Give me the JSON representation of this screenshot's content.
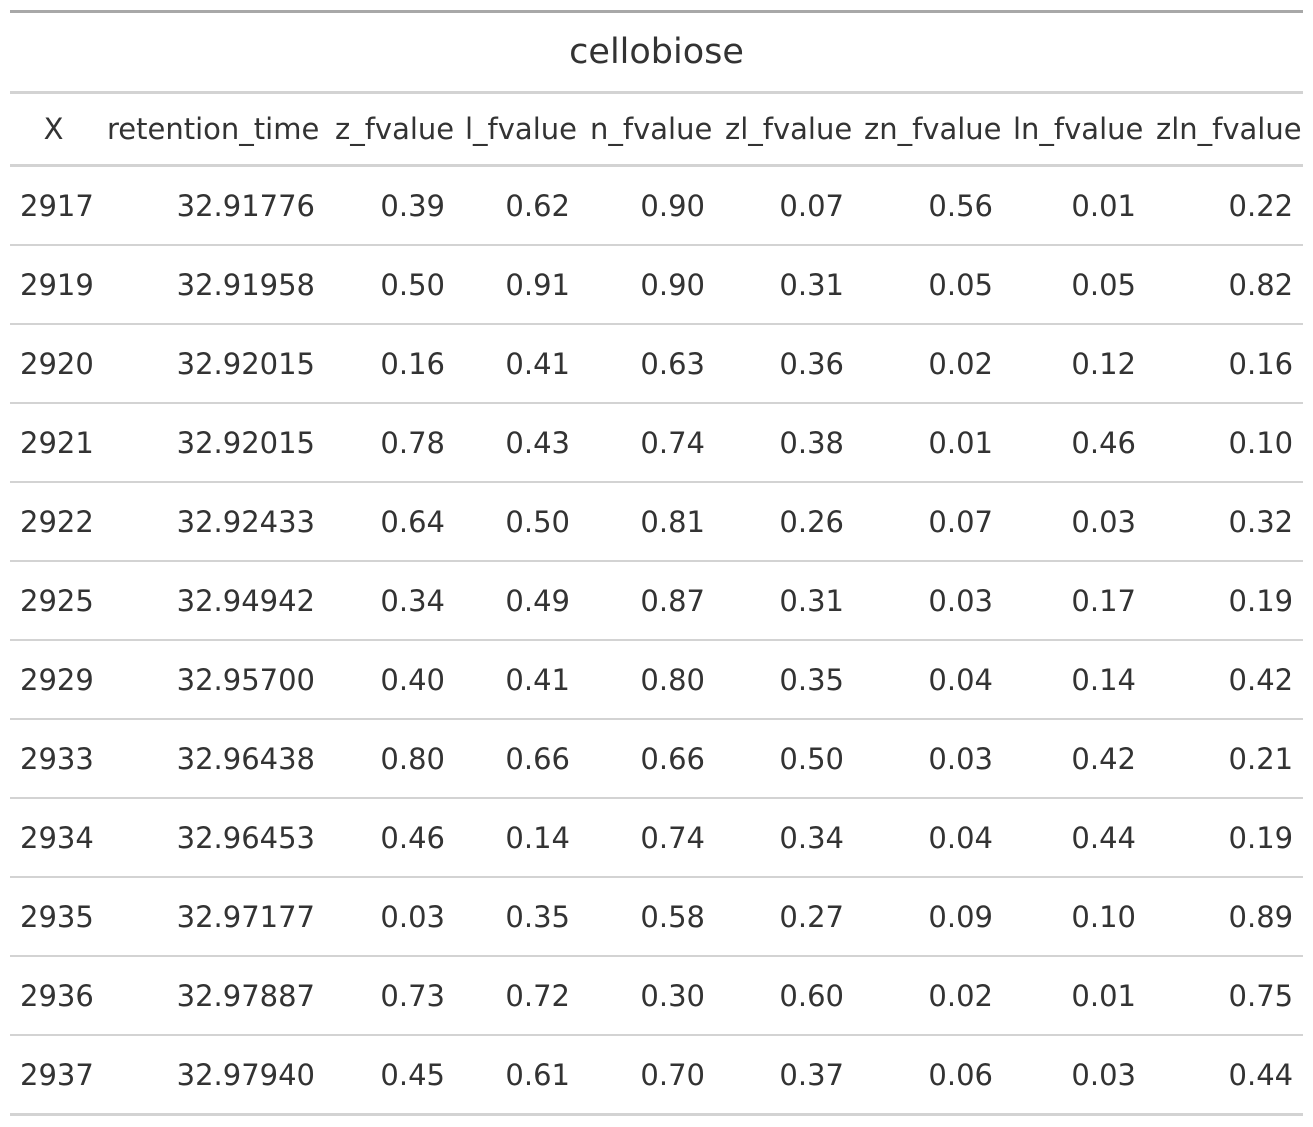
{
  "chart_data": {
    "type": "table",
    "title": "cellobiose",
    "columns": [
      "X",
      "retention_time",
      "z_fvalue",
      "l_fvalue",
      "n_fvalue",
      "zl_fvalue",
      "zn_fvalue",
      "ln_fvalue",
      "zln_fvalue"
    ],
    "rows": [
      [
        "2917",
        "32.91776",
        "0.39",
        "0.62",
        "0.90",
        "0.07",
        "0.56",
        "0.01",
        "0.22"
      ],
      [
        "2919",
        "32.91958",
        "0.50",
        "0.91",
        "0.90",
        "0.31",
        "0.05",
        "0.05",
        "0.82"
      ],
      [
        "2920",
        "32.92015",
        "0.16",
        "0.41",
        "0.63",
        "0.36",
        "0.02",
        "0.12",
        "0.16"
      ],
      [
        "2921",
        "32.92015",
        "0.78",
        "0.43",
        "0.74",
        "0.38",
        "0.01",
        "0.46",
        "0.10"
      ],
      [
        "2922",
        "32.92433",
        "0.64",
        "0.50",
        "0.81",
        "0.26",
        "0.07",
        "0.03",
        "0.32"
      ],
      [
        "2925",
        "32.94942",
        "0.34",
        "0.49",
        "0.87",
        "0.31",
        "0.03",
        "0.17",
        "0.19"
      ],
      [
        "2929",
        "32.95700",
        "0.40",
        "0.41",
        "0.80",
        "0.35",
        "0.04",
        "0.14",
        "0.42"
      ],
      [
        "2933",
        "32.96438",
        "0.80",
        "0.66",
        "0.66",
        "0.50",
        "0.03",
        "0.42",
        "0.21"
      ],
      [
        "2934",
        "32.96453",
        "0.46",
        "0.14",
        "0.74",
        "0.34",
        "0.04",
        "0.44",
        "0.19"
      ],
      [
        "2935",
        "32.97177",
        "0.03",
        "0.35",
        "0.58",
        "0.27",
        "0.09",
        "0.10",
        "0.89"
      ],
      [
        "2936",
        "32.97887",
        "0.73",
        "0.72",
        "0.30",
        "0.60",
        "0.02",
        "0.01",
        "0.75"
      ],
      [
        "2937",
        "32.97940",
        "0.45",
        "0.61",
        "0.70",
        "0.37",
        "0.06",
        "0.03",
        "0.44"
      ]
    ]
  },
  "colors": {
    "text": "#333333",
    "rule_dark": "#a8a8a8",
    "rule_light": "#d3d3d3"
  }
}
